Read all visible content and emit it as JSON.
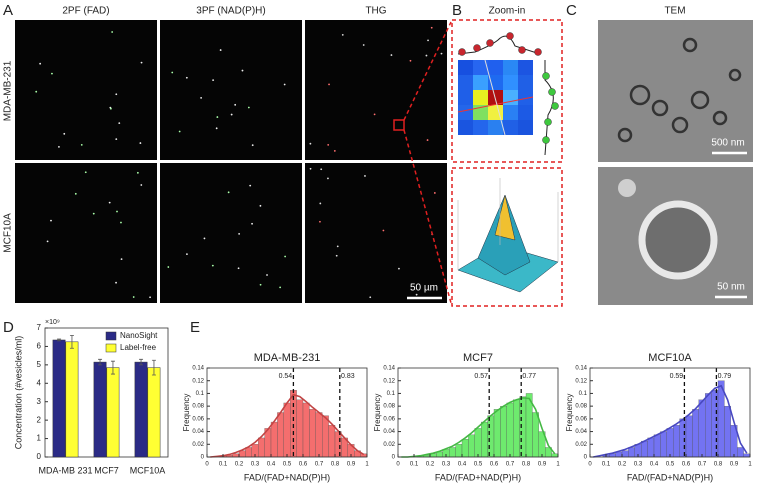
{
  "figure": {
    "panel_labels": [
      "A",
      "B",
      "C",
      "D",
      "E"
    ],
    "panel_a": {
      "columns": [
        "2PF (FAD)",
        "3PF (NAD(P)H)",
        "THG"
      ],
      "rows": [
        "MDA-MB-231",
        "MCF10A"
      ],
      "scale_bar": "50 µm"
    },
    "panel_b": {
      "title": "Zoom-in"
    },
    "panel_c": {
      "title": "TEM",
      "scale_bars": [
        "500 nm",
        "50 nm"
      ]
    }
  },
  "chart_data": [
    {
      "type": "bar",
      "ylabel": "Concentration (#vesicles/ml)",
      "y_multiplier": "×10⁹",
      "categories": [
        "MDA-MB 231",
        "MCF7",
        "MCF10A"
      ],
      "series": [
        {
          "name": "NanoSight",
          "color": "#2b2b86",
          "values": [
            6.35,
            5.15,
            5.15
          ],
          "errors": [
            0.05,
            0.15,
            0.15
          ]
        },
        {
          "name": "Label-free",
          "color": "#ffff33",
          "values": [
            6.25,
            4.85,
            4.85
          ],
          "errors": [
            0.35,
            0.35,
            0.4
          ]
        }
      ],
      "ylim": [
        0,
        7
      ],
      "yticks": [
        0,
        1,
        2,
        3,
        4,
        5,
        6,
        7
      ],
      "legend": "upper right"
    },
    {
      "type": "histogram",
      "title": "MDA-MB-231",
      "xlabel": "FAD/(FAD+NAD(P)H)",
      "ylabel": "Frequency",
      "color": "#f25555",
      "bins": [
        0,
        0.04,
        0.08,
        0.12,
        0.16,
        0.2,
        0.24,
        0.28,
        0.32,
        0.36,
        0.4,
        0.44,
        0.48,
        0.52,
        0.56,
        0.6,
        0.64,
        0.68,
        0.72,
        0.76,
        0.8,
        0.84,
        0.88,
        0.92,
        0.96,
        1
      ],
      "values": [
        0,
        0,
        0.002,
        0.003,
        0.005,
        0.01,
        0.015,
        0.02,
        0.03,
        0.045,
        0.055,
        0.07,
        0.085,
        0.105,
        0.09,
        0.085,
        0.075,
        0.07,
        0.065,
        0.05,
        0.04,
        0.03,
        0.02,
        0.01,
        0.005
      ],
      "fit": {
        "x": [
          0.02,
          0.06,
          0.1,
          0.14,
          0.18,
          0.22,
          0.26,
          0.3,
          0.34,
          0.38,
          0.42,
          0.46,
          0.5,
          0.54,
          0.58,
          0.62,
          0.66,
          0.7,
          0.74,
          0.78,
          0.82,
          0.86,
          0.9,
          0.94,
          0.98
        ],
        "values": [
          0,
          0.001,
          0.002,
          0.004,
          0.007,
          0.011,
          0.016,
          0.023,
          0.032,
          0.043,
          0.056,
          0.07,
          0.085,
          0.098,
          0.095,
          0.087,
          0.078,
          0.07,
          0.062,
          0.052,
          0.041,
          0.03,
          0.019,
          0.01,
          0.004
        ]
      },
      "mean_lines": [
        0.54,
        0.83
      ],
      "xlim": [
        0,
        1
      ],
      "ylim": [
        0,
        0.14
      ],
      "xticks": [
        0,
        0.1,
        0.2,
        0.3,
        0.4,
        0.5,
        0.6,
        0.7,
        0.8,
        0.9,
        1
      ],
      "yticks": [
        0,
        0.02,
        0.04,
        0.06,
        0.08,
        0.1,
        0.12,
        0.14
      ]
    },
    {
      "type": "histogram",
      "title": "MCF7",
      "xlabel": "FAD/(FAD+NAD(P)H)",
      "ylabel": "Frequency",
      "color": "#55e655",
      "bins": [
        0,
        0.04,
        0.08,
        0.12,
        0.16,
        0.2,
        0.24,
        0.28,
        0.32,
        0.36,
        0.4,
        0.44,
        0.48,
        0.52,
        0.56,
        0.6,
        0.64,
        0.68,
        0.72,
        0.76,
        0.8,
        0.84,
        0.88,
        0.92,
        0.96,
        1
      ],
      "values": [
        0,
        0,
        0,
        0.002,
        0.003,
        0.005,
        0.008,
        0.012,
        0.015,
        0.02,
        0.028,
        0.035,
        0.045,
        0.055,
        0.065,
        0.075,
        0.08,
        0.085,
        0.09,
        0.095,
        0.1,
        0.07,
        0.04,
        0.015,
        0.005
      ],
      "fit": {
        "x": [
          0.02,
          0.06,
          0.1,
          0.14,
          0.18,
          0.22,
          0.26,
          0.3,
          0.34,
          0.38,
          0.42,
          0.46,
          0.5,
          0.54,
          0.58,
          0.62,
          0.66,
          0.7,
          0.74,
          0.78,
          0.82,
          0.86,
          0.9,
          0.94,
          0.98
        ],
        "values": [
          0,
          0,
          0.001,
          0.002,
          0.004,
          0.006,
          0.009,
          0.013,
          0.017,
          0.023,
          0.03,
          0.038,
          0.047,
          0.056,
          0.065,
          0.073,
          0.08,
          0.086,
          0.09,
          0.093,
          0.092,
          0.075,
          0.045,
          0.018,
          0.005
        ]
      },
      "mean_lines": [
        0.57,
        0.77
      ],
      "xlim": [
        0,
        1
      ],
      "ylim": [
        0,
        0.14
      ],
      "xticks": [
        0,
        0.1,
        0.2,
        0.3,
        0.4,
        0.5,
        0.6,
        0.7,
        0.8,
        0.9,
        1
      ],
      "yticks": [
        0,
        0.02,
        0.04,
        0.06,
        0.08,
        0.1,
        0.12,
        0.14
      ]
    },
    {
      "type": "histogram",
      "title": "MCF10A",
      "xlabel": "FAD/(FAD+NAD(P)H)",
      "ylabel": "Frequency",
      "color": "#5a5af0",
      "bins": [
        0,
        0.04,
        0.08,
        0.12,
        0.16,
        0.2,
        0.24,
        0.28,
        0.32,
        0.36,
        0.4,
        0.44,
        0.48,
        0.52,
        0.56,
        0.6,
        0.64,
        0.68,
        0.72,
        0.76,
        0.8,
        0.84,
        0.88,
        0.92,
        0.96,
        1
      ],
      "values": [
        0,
        0,
        0.003,
        0.005,
        0.008,
        0.01,
        0.015,
        0.02,
        0.025,
        0.03,
        0.035,
        0.04,
        0.045,
        0.05,
        0.06,
        0.065,
        0.075,
        0.09,
        0.1,
        0.105,
        0.12,
        0.08,
        0.05,
        0.015,
        0.005
      ],
      "fit": {
        "x": [
          0.02,
          0.06,
          0.1,
          0.14,
          0.18,
          0.22,
          0.26,
          0.3,
          0.34,
          0.38,
          0.42,
          0.46,
          0.5,
          0.54,
          0.58,
          0.62,
          0.66,
          0.7,
          0.74,
          0.78,
          0.82,
          0.86,
          0.9,
          0.94,
          0.98
        ],
        "values": [
          0,
          0.002,
          0.004,
          0.006,
          0.009,
          0.012,
          0.016,
          0.02,
          0.025,
          0.03,
          0.035,
          0.04,
          0.046,
          0.052,
          0.059,
          0.067,
          0.076,
          0.087,
          0.098,
          0.108,
          0.112,
          0.09,
          0.055,
          0.022,
          0.006
        ]
      },
      "mean_lines": [
        0.59,
        0.79
      ],
      "xlim": [
        0,
        1
      ],
      "ylim": [
        0,
        0.14
      ],
      "xticks": [
        0,
        0.1,
        0.2,
        0.3,
        0.4,
        0.5,
        0.6,
        0.7,
        0.8,
        0.9,
        1
      ],
      "yticks": [
        0,
        0.02,
        0.04,
        0.06,
        0.08,
        0.1,
        0.12,
        0.14
      ]
    }
  ]
}
